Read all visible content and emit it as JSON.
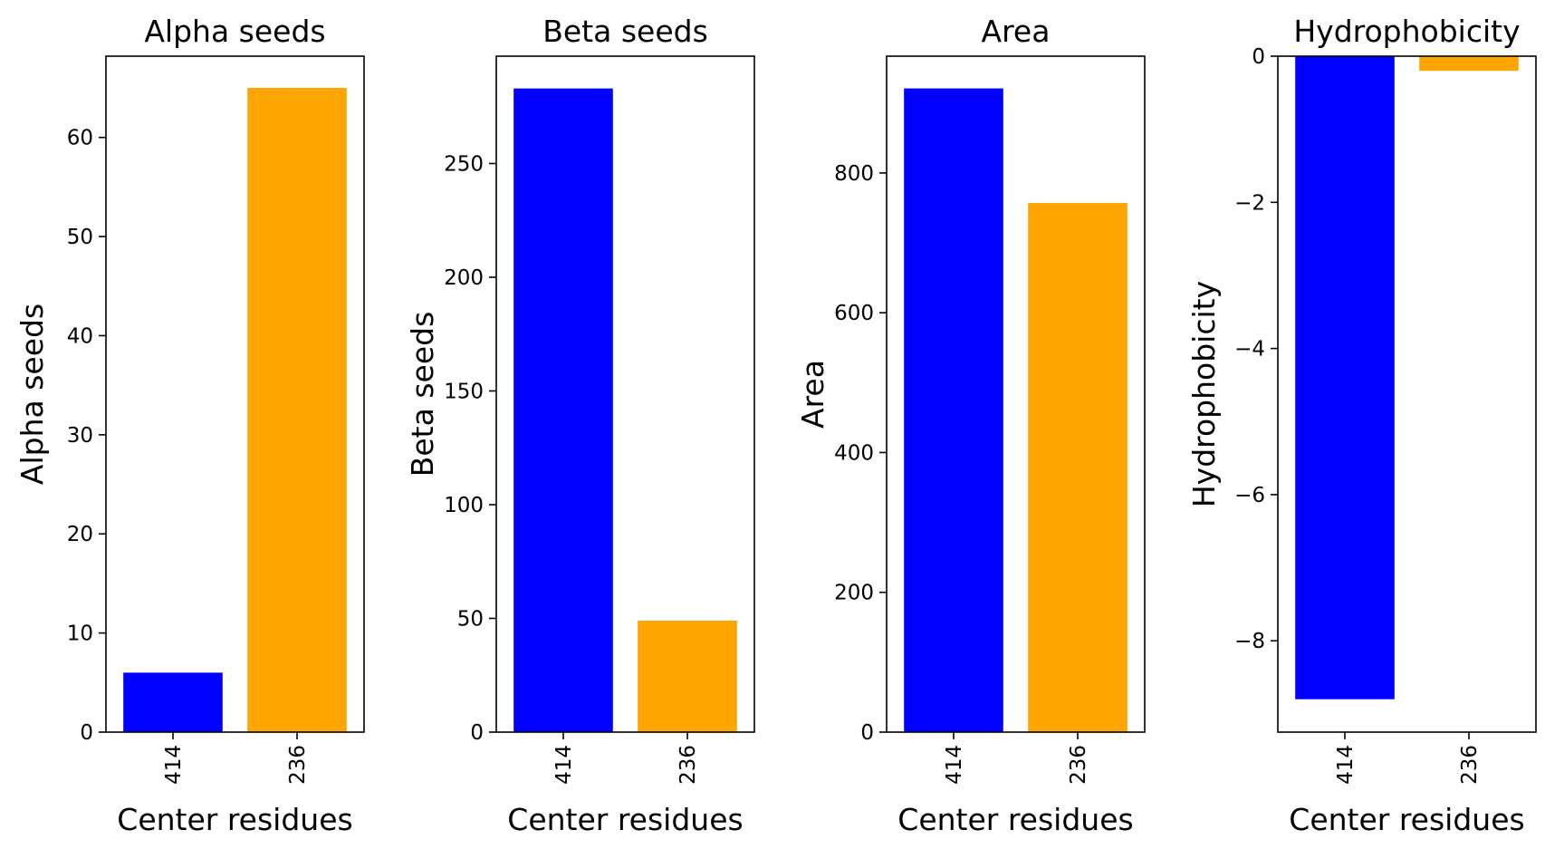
{
  "chart_data": [
    {
      "type": "bar",
      "title": "Alpha seeds",
      "xlabel": "Center residues",
      "ylabel": "Alpha seeds",
      "categories": [
        "414",
        "236"
      ],
      "values": [
        6,
        65
      ],
      "colors": [
        "#0000ff",
        "#ffa500"
      ],
      "ylim": [
        0,
        68.2
      ],
      "yticks": [
        0,
        10,
        20,
        30,
        40,
        50,
        60
      ],
      "grid": false
    },
    {
      "type": "bar",
      "title": "Beta seeds",
      "xlabel": "Center residues",
      "ylabel": "Beta seeds",
      "categories": [
        "414",
        "236"
      ],
      "values": [
        283,
        49
      ],
      "colors": [
        "#0000ff",
        "#ffa500"
      ],
      "ylim": [
        0,
        297.2
      ],
      "yticks": [
        0,
        50,
        100,
        150,
        200,
        250
      ],
      "grid": false
    },
    {
      "type": "bar",
      "title": "Area",
      "xlabel": "Center residues",
      "ylabel": "Area",
      "categories": [
        "414",
        "236"
      ],
      "values": [
        921,
        757
      ],
      "colors": [
        "#0000ff",
        "#ffa500"
      ],
      "ylim": [
        0,
        967.1
      ],
      "yticks": [
        0,
        200,
        400,
        600,
        800
      ],
      "grid": false
    },
    {
      "type": "bar",
      "title": "Hydrophobicity",
      "xlabel": "Center residues",
      "ylabel": "Hydrophobicity",
      "categories": [
        "414",
        "236"
      ],
      "values": [
        -8.8,
        -0.2
      ],
      "colors": [
        "#0000ff",
        "#ffa500"
      ],
      "ylim": [
        -9.25,
        0
      ],
      "yticks": [
        0,
        -2,
        -4,
        -6,
        -8
      ],
      "ytick_labels": [
        "0",
        "−2",
        "−4",
        "−6",
        "−8"
      ],
      "grid": false
    }
  ]
}
